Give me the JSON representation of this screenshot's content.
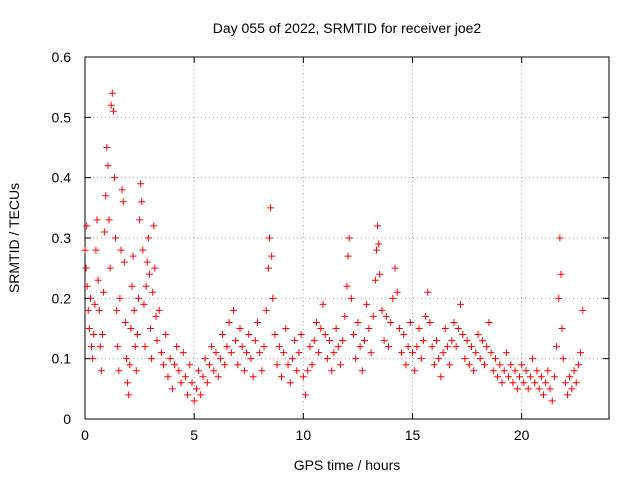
{
  "chart_data": {
    "type": "scatter",
    "title": "Day 055 of 2022, SRMTID for receiver joe2",
    "xlabel": "GPS time / hours",
    "ylabel": "SRMTID / TECUs",
    "xlim": [
      0,
      24
    ],
    "ylim": [
      0,
      0.6
    ],
    "x_ticks": [
      0,
      5,
      10,
      15,
      20
    ],
    "y_ticks": [
      0,
      0.1,
      0.2,
      0.3,
      0.4,
      0.5,
      0.6
    ],
    "x_tick_labels": [
      "0",
      "5",
      "10",
      "15",
      "20"
    ],
    "y_tick_labels": [
      "0",
      "0.1",
      "0.2",
      "0.3",
      "0.4",
      "0.5",
      "0.6"
    ],
    "grid": true,
    "marker": "+",
    "color": "#ff0000",
    "series": [
      {
        "name": "SRMTID",
        "points": [
          [
            0.0,
            0.28
          ],
          [
            0.05,
            0.25
          ],
          [
            0.08,
            0.32
          ],
          [
            0.1,
            0.22
          ],
          [
            0.15,
            0.18
          ],
          [
            0.2,
            0.15
          ],
          [
            0.25,
            0.2
          ],
          [
            0.3,
            0.12
          ],
          [
            0.35,
            0.1
          ],
          [
            0.4,
            0.14
          ],
          [
            0.45,
            0.19
          ],
          [
            0.5,
            0.28
          ],
          [
            0.55,
            0.33
          ],
          [
            0.6,
            0.23
          ],
          [
            0.65,
            0.18
          ],
          [
            0.7,
            0.12
          ],
          [
            0.75,
            0.08
          ],
          [
            0.8,
            0.14
          ],
          [
            0.85,
            0.21
          ],
          [
            0.9,
            0.31
          ],
          [
            0.95,
            0.37
          ],
          [
            1.0,
            0.45
          ],
          [
            1.05,
            0.42
          ],
          [
            1.1,
            0.33
          ],
          [
            1.15,
            0.25
          ],
          [
            1.2,
            0.52
          ],
          [
            1.25,
            0.54
          ],
          [
            1.3,
            0.51
          ],
          [
            1.35,
            0.4
          ],
          [
            1.4,
            0.3
          ],
          [
            1.45,
            0.18
          ],
          [
            1.5,
            0.12
          ],
          [
            1.55,
            0.08
          ],
          [
            1.6,
            0.2
          ],
          [
            1.65,
            0.28
          ],
          [
            1.7,
            0.38
          ],
          [
            1.75,
            0.36
          ],
          [
            1.8,
            0.26
          ],
          [
            1.85,
            0.16
          ],
          [
            1.9,
            0.1
          ],
          [
            1.95,
            0.06
          ],
          [
            2.0,
            0.04
          ],
          [
            2.05,
            0.09
          ],
          [
            2.1,
            0.15
          ],
          [
            2.15,
            0.22
          ],
          [
            2.2,
            0.27
          ],
          [
            2.25,
            0.18
          ],
          [
            2.3,
            0.12
          ],
          [
            2.35,
            0.08
          ],
          [
            2.4,
            0.14
          ],
          [
            2.45,
            0.2
          ],
          [
            2.5,
            0.33
          ],
          [
            2.55,
            0.39
          ],
          [
            2.6,
            0.36
          ],
          [
            2.65,
            0.28
          ],
          [
            2.7,
            0.19
          ],
          [
            2.75,
            0.12
          ],
          [
            2.8,
            0.22
          ],
          [
            2.85,
            0.26
          ],
          [
            2.9,
            0.3
          ],
          [
            2.95,
            0.24
          ],
          [
            3.0,
            0.15
          ],
          [
            3.05,
            0.1
          ],
          [
            3.1,
            0.21
          ],
          [
            3.15,
            0.32
          ],
          [
            3.2,
            0.25
          ],
          [
            3.25,
            0.17
          ],
          [
            3.3,
            0.13
          ],
          [
            3.4,
            0.18
          ],
          [
            3.5,
            0.11
          ],
          [
            3.6,
            0.09
          ],
          [
            3.7,
            0.14
          ],
          [
            3.8,
            0.07
          ],
          [
            3.9,
            0.1
          ],
          [
            4.0,
            0.05
          ],
          [
            4.1,
            0.09
          ],
          [
            4.2,
            0.12
          ],
          [
            4.3,
            0.08
          ],
          [
            4.4,
            0.06
          ],
          [
            4.5,
            0.11
          ],
          [
            4.6,
            0.07
          ],
          [
            4.7,
            0.04
          ],
          [
            4.8,
            0.09
          ],
          [
            4.9,
            0.06
          ],
          [
            5.0,
            0.03
          ],
          [
            5.1,
            0.05
          ],
          [
            5.2,
            0.08
          ],
          [
            5.3,
            0.04
          ],
          [
            5.4,
            0.07
          ],
          [
            5.5,
            0.1
          ],
          [
            5.6,
            0.06
          ],
          [
            5.7,
            0.09
          ],
          [
            5.8,
            0.12
          ],
          [
            5.9,
            0.08
          ],
          [
            6.0,
            0.11
          ],
          [
            6.1,
            0.07
          ],
          [
            6.2,
            0.1
          ],
          [
            6.3,
            0.14
          ],
          [
            6.4,
            0.09
          ],
          [
            6.5,
            0.12
          ],
          [
            6.6,
            0.16
          ],
          [
            6.7,
            0.11
          ],
          [
            6.8,
            0.18
          ],
          [
            6.9,
            0.13
          ],
          [
            7.0,
            0.09
          ],
          [
            7.1,
            0.15
          ],
          [
            7.2,
            0.12
          ],
          [
            7.3,
            0.08
          ],
          [
            7.4,
            0.11
          ],
          [
            7.5,
            0.14
          ],
          [
            7.6,
            0.1
          ],
          [
            7.7,
            0.07
          ],
          [
            7.8,
            0.13
          ],
          [
            7.9,
            0.16
          ],
          [
            8.0,
            0.11
          ],
          [
            8.1,
            0.08
          ],
          [
            8.2,
            0.12
          ],
          [
            8.3,
            0.18
          ],
          [
            8.4,
            0.25
          ],
          [
            8.45,
            0.3
          ],
          [
            8.5,
            0.35
          ],
          [
            8.55,
            0.27
          ],
          [
            8.6,
            0.2
          ],
          [
            8.7,
            0.14
          ],
          [
            8.8,
            0.09
          ],
          [
            8.9,
            0.12
          ],
          [
            9.0,
            0.07
          ],
          [
            9.1,
            0.11
          ],
          [
            9.2,
            0.15
          ],
          [
            9.3,
            0.09
          ],
          [
            9.4,
            0.06
          ],
          [
            9.5,
            0.1
          ],
          [
            9.6,
            0.13
          ],
          [
            9.7,
            0.08
          ],
          [
            9.8,
            0.11
          ],
          [
            9.9,
            0.14
          ],
          [
            10.0,
            0.07
          ],
          [
            10.1,
            0.04
          ],
          [
            10.2,
            0.08
          ],
          [
            10.3,
            0.12
          ],
          [
            10.4,
            0.09
          ],
          [
            10.5,
            0.13
          ],
          [
            10.6,
            0.16
          ],
          [
            10.7,
            0.11
          ],
          [
            10.8,
            0.15
          ],
          [
            10.9,
            0.19
          ],
          [
            11.0,
            0.14
          ],
          [
            11.1,
            0.1
          ],
          [
            11.2,
            0.13
          ],
          [
            11.3,
            0.08
          ],
          [
            11.4,
            0.11
          ],
          [
            11.5,
            0.15
          ],
          [
            11.6,
            0.12
          ],
          [
            11.7,
            0.09
          ],
          [
            11.8,
            0.13
          ],
          [
            11.9,
            0.17
          ],
          [
            12.0,
            0.22
          ],
          [
            12.05,
            0.27
          ],
          [
            12.1,
            0.3
          ],
          [
            12.2,
            0.2
          ],
          [
            12.3,
            0.14
          ],
          [
            12.4,
            0.1
          ],
          [
            12.5,
            0.16
          ],
          [
            12.6,
            0.12
          ],
          [
            12.7,
            0.08
          ],
          [
            12.8,
            0.13
          ],
          [
            12.9,
            0.19
          ],
          [
            13.0,
            0.15
          ],
          [
            13.1,
            0.11
          ],
          [
            13.2,
            0.17
          ],
          [
            13.3,
            0.23
          ],
          [
            13.35,
            0.28
          ],
          [
            13.4,
            0.32
          ],
          [
            13.45,
            0.29
          ],
          [
            13.5,
            0.24
          ],
          [
            13.6,
            0.18
          ],
          [
            13.7,
            0.13
          ],
          [
            13.8,
            0.17
          ],
          [
            13.9,
            0.12
          ],
          [
            14.0,
            0.16
          ],
          [
            14.1,
            0.2
          ],
          [
            14.2,
            0.25
          ],
          [
            14.3,
            0.21
          ],
          [
            14.4,
            0.15
          ],
          [
            14.5,
            0.11
          ],
          [
            14.6,
            0.14
          ],
          [
            14.7,
            0.09
          ],
          [
            14.8,
            0.12
          ],
          [
            14.9,
            0.16
          ],
          [
            15.0,
            0.11
          ],
          [
            15.1,
            0.08
          ],
          [
            15.2,
            0.12
          ],
          [
            15.3,
            0.15
          ],
          [
            15.4,
            0.1
          ],
          [
            15.5,
            0.13
          ],
          [
            15.6,
            0.17
          ],
          [
            15.7,
            0.21
          ],
          [
            15.8,
            0.16
          ],
          [
            15.9,
            0.12
          ],
          [
            16.0,
            0.09
          ],
          [
            16.1,
            0.13
          ],
          [
            16.2,
            0.1
          ],
          [
            16.3,
            0.07
          ],
          [
            16.4,
            0.11
          ],
          [
            16.5,
            0.15
          ],
          [
            16.6,
            0.12
          ],
          [
            16.7,
            0.09
          ],
          [
            16.8,
            0.13
          ],
          [
            16.9,
            0.16
          ],
          [
            17.0,
            0.12
          ],
          [
            17.1,
            0.15
          ],
          [
            17.2,
            0.19
          ],
          [
            17.3,
            0.14
          ],
          [
            17.4,
            0.1
          ],
          [
            17.5,
            0.13
          ],
          [
            17.6,
            0.09
          ],
          [
            17.7,
            0.12
          ],
          [
            17.8,
            0.08
          ],
          [
            17.9,
            0.11
          ],
          [
            18.0,
            0.14
          ],
          [
            18.1,
            0.1
          ],
          [
            18.2,
            0.13
          ],
          [
            18.3,
            0.09
          ],
          [
            18.4,
            0.12
          ],
          [
            18.5,
            0.16
          ],
          [
            18.6,
            0.11
          ],
          [
            18.7,
            0.08
          ],
          [
            18.8,
            0.1
          ],
          [
            18.9,
            0.07
          ],
          [
            19.0,
            0.09
          ],
          [
            19.1,
            0.06
          ],
          [
            19.2,
            0.08
          ],
          [
            19.3,
            0.11
          ],
          [
            19.4,
            0.07
          ],
          [
            19.5,
            0.09
          ],
          [
            19.6,
            0.06
          ],
          [
            19.7,
            0.08
          ],
          [
            19.8,
            0.05
          ],
          [
            19.9,
            0.07
          ],
          [
            20.0,
            0.09
          ],
          [
            20.1,
            0.06
          ],
          [
            20.2,
            0.08
          ],
          [
            20.3,
            0.05
          ],
          [
            20.4,
            0.07
          ],
          [
            20.5,
            0.1
          ],
          [
            20.6,
            0.06
          ],
          [
            20.7,
            0.08
          ],
          [
            20.8,
            0.05
          ],
          [
            20.9,
            0.07
          ],
          [
            21.0,
            0.04
          ],
          [
            21.1,
            0.06
          ],
          [
            21.2,
            0.08
          ],
          [
            21.3,
            0.05
          ],
          [
            21.4,
            0.03
          ],
          [
            21.5,
            0.07
          ],
          [
            21.6,
            0.12
          ],
          [
            21.7,
            0.2
          ],
          [
            21.75,
            0.3
          ],
          [
            21.8,
            0.24
          ],
          [
            21.85,
            0.15
          ],
          [
            21.9,
            0.1
          ],
          [
            22.0,
            0.06
          ],
          [
            22.1,
            0.04
          ],
          [
            22.2,
            0.07
          ],
          [
            22.3,
            0.05
          ],
          [
            22.4,
            0.08
          ],
          [
            22.5,
            0.06
          ],
          [
            22.6,
            0.09
          ],
          [
            22.7,
            0.11
          ],
          [
            22.8,
            0.18
          ]
        ]
      }
    ]
  }
}
